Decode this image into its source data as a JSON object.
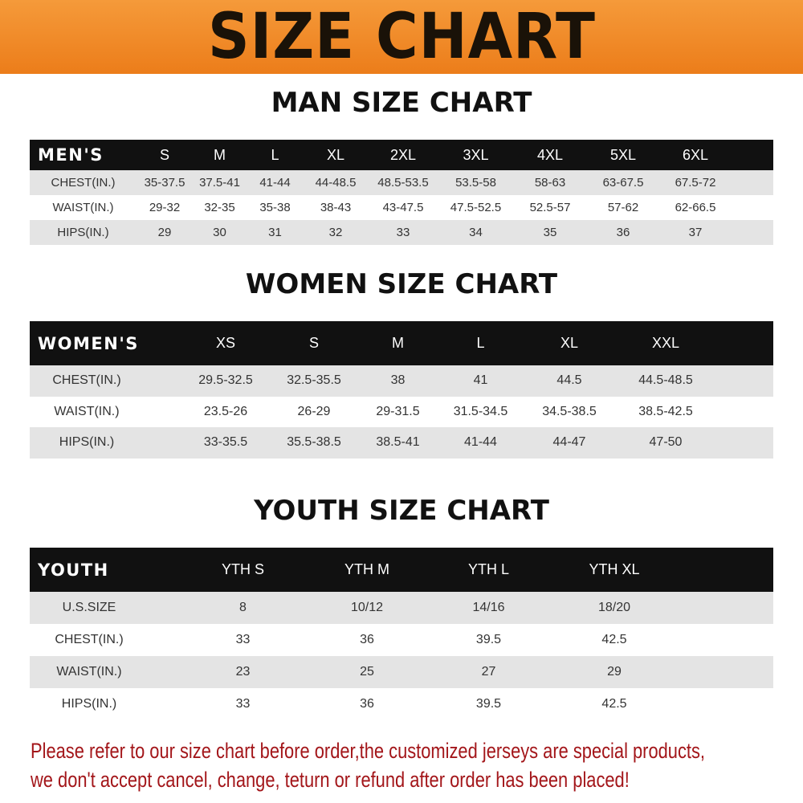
{
  "title": "SIZE CHART",
  "colors": {
    "banner": "#ef8a25",
    "header_row": "#111111",
    "stripe": "#e4e4e4",
    "note": "#a3161a"
  },
  "men": {
    "title": "MAN SIZE CHART",
    "header": [
      "MEN'S",
      "S",
      "M",
      "L",
      "XL",
      "2XL",
      "3XL",
      "4XL",
      "5XL",
      "6XL"
    ],
    "rows": [
      [
        "CHEST(IN.)",
        "35-37.5",
        "37.5-41",
        "41-44",
        "44-48.5",
        "48.5-53.5",
        "53.5-58",
        "58-63",
        "63-67.5",
        "67.5-72"
      ],
      [
        "WAIST(IN.)",
        "29-32",
        "32-35",
        "35-38",
        "38-43",
        "43-47.5",
        "47.5-52.5",
        "52.5-57",
        "57-62",
        "62-66.5"
      ],
      [
        "HIPS(IN.)",
        "29",
        "30",
        "31",
        "32",
        "33",
        "34",
        "35",
        "36",
        "37"
      ]
    ]
  },
  "women": {
    "title": "WOMEN SIZE CHART",
    "header": [
      "WOMEN'S",
      "XS",
      "S",
      "M",
      "L",
      "XL",
      "XXL"
    ],
    "rows": [
      [
        "CHEST(IN.)",
        "29.5-32.5",
        "32.5-35.5",
        "38",
        "41",
        "44.5",
        "44.5-48.5"
      ],
      [
        "WAIST(IN.)",
        "23.5-26",
        "26-29",
        "29-31.5",
        "31.5-34.5",
        "34.5-38.5",
        "38.5-42.5"
      ],
      [
        "HIPS(IN.)",
        "33-35.5",
        "35.5-38.5",
        "38.5-41",
        "41-44",
        "44-47",
        "47-50"
      ]
    ]
  },
  "youth": {
    "title": "YOUTH SIZE CHART",
    "header": [
      "YOUTH",
      "YTH S",
      "YTH M",
      "YTH L",
      "YTH XL"
    ],
    "rows": [
      [
        "U.S.SIZE",
        "8",
        "10/12",
        "14/16",
        "18/20"
      ],
      [
        "CHEST(IN.)",
        "33",
        "36",
        "39.5",
        "42.5"
      ],
      [
        "WAIST(IN.)",
        "23",
        "25",
        "27",
        "29"
      ],
      [
        "HIPS(IN.)",
        "33",
        "36",
        "39.5",
        "42.5"
      ]
    ]
  },
  "note": [
    "Please refer to our size chart before order,the customized jerseys are special products,",
    "we don't accept cancel, change, teturn or refund after order has been placed!"
  ]
}
